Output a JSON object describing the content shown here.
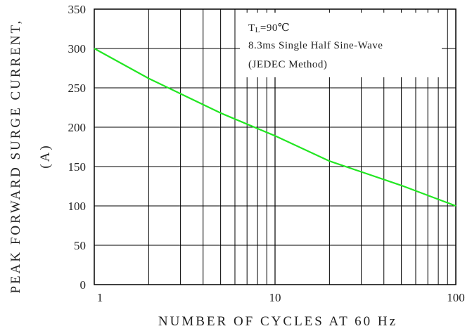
{
  "chart_data": {
    "type": "line",
    "xlabel": "NUMBER OF CYCLES AT 60 Hz",
    "ylabel": [
      "PEAK FORWARD SURGE CURRENT,",
      "(A)"
    ],
    "x_scale": "log",
    "xlim": [
      1,
      100
    ],
    "ylim": [
      0,
      350
    ],
    "x_ticks": [
      "1",
      "10",
      "100"
    ],
    "y_ticks": [
      "0",
      "50",
      "100",
      "150",
      "200",
      "250",
      "300",
      "350"
    ],
    "grid": true,
    "annotation": {
      "line1_main": "T",
      "line1_sub": "L",
      "line1_rest": "=90℃",
      "line2": "8.3ms Single Half Sine-Wave",
      "line3": "(JEDEC Method)",
      "placement": "top-right"
    },
    "series": [
      {
        "color": "#22e622",
        "x": [
          1,
          2,
          5,
          10,
          20,
          50,
          100
        ],
        "y": [
          300,
          262,
          218,
          189,
          157,
          126,
          100
        ]
      }
    ]
  }
}
